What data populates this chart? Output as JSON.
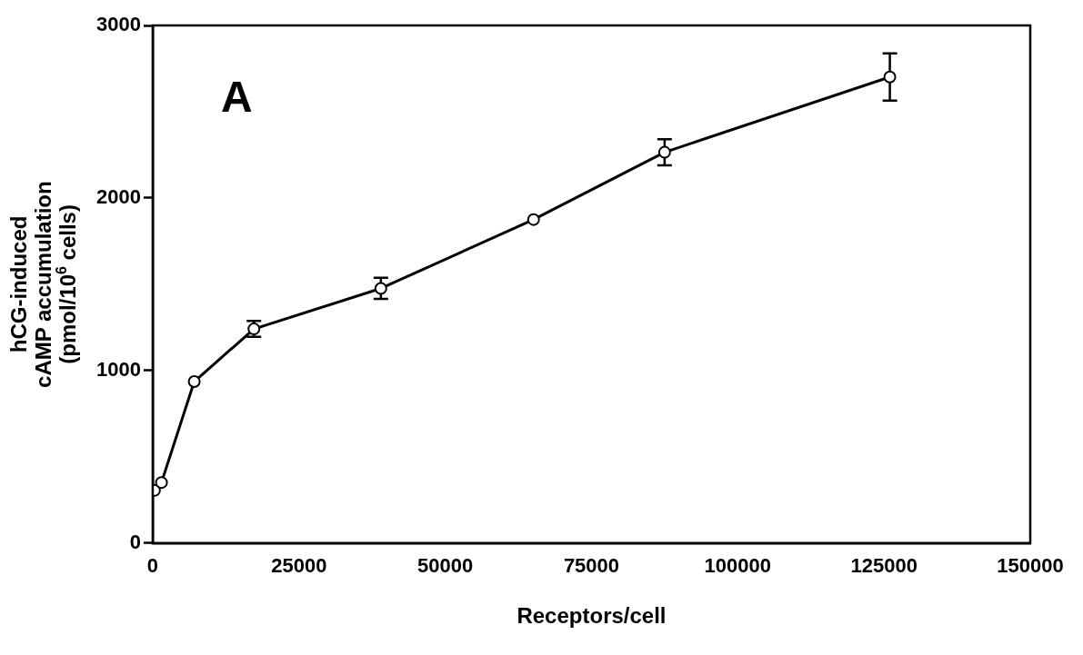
{
  "chart_data": {
    "type": "line",
    "xlabel": "Receptors/cell",
    "ylabel": "hCG-induced\ncAMP accumulation\n(pmol/10$^{6}$ cells)",
    "annotations": [
      "A"
    ],
    "x": [
      300,
      1500,
      7100,
      17300,
      39000,
      65100,
      87500,
      126000
    ],
    "series": [
      {
        "color": "#000000",
        "values": [
          305,
          351,
          936,
          1241,
          1476,
          1875,
          2265,
          2701
        ],
        "errors": [
          null,
          null,
          null,
          46,
          61,
          null,
          76,
          137
        ]
      }
    ],
    "xlim": [
      0,
      150000
    ],
    "xticks": [
      0,
      25000,
      50000,
      75000,
      100000,
      125000,
      150000
    ],
    "ylim": [
      0,
      3000
    ],
    "yticks": [
      0,
      1000,
      2000,
      3000
    ],
    "grid": false,
    "legend": false,
    "marker": "circle",
    "line_style": "solid"
  }
}
